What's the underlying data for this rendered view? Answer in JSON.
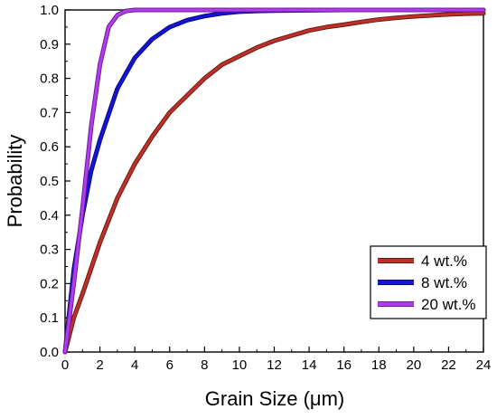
{
  "chart_data": {
    "type": "line",
    "title": "",
    "xlabel": "Grain Size (μm)",
    "ylabel": "Probability",
    "xlim": [
      0,
      24
    ],
    "ylim": [
      0,
      1.0
    ],
    "x_ticks": [
      "0",
      "2",
      "4",
      "6",
      "8",
      "10",
      "12",
      "14",
      "16",
      "18",
      "20",
      "22",
      "24"
    ],
    "y_ticks": [
      "0.0",
      "0.1",
      "0.2",
      "0.3",
      "0.4",
      "0.5",
      "0.6",
      "0.7",
      "0.8",
      "0.9",
      "1.0"
    ],
    "grid": false,
    "legend_position": "bottom-right",
    "series": [
      {
        "name": "4 wt.%",
        "color": "#c0302a",
        "edge_color": "#6b1a10",
        "x": [
          0,
          0.5,
          1,
          2,
          3,
          4,
          5,
          6,
          7,
          8,
          9,
          10,
          11,
          12,
          13,
          14,
          15,
          16,
          17,
          18,
          19,
          20,
          21,
          22,
          23,
          24
        ],
        "y": [
          0,
          0.1,
          0.17,
          0.32,
          0.45,
          0.55,
          0.63,
          0.7,
          0.75,
          0.8,
          0.84,
          0.865,
          0.89,
          0.91,
          0.925,
          0.94,
          0.95,
          0.957,
          0.965,
          0.972,
          0.977,
          0.981,
          0.984,
          0.987,
          0.989,
          0.99
        ]
      },
      {
        "name": "8 wt.%",
        "color": "#1414d6",
        "edge_color": "#0a0a80",
        "x": [
          0,
          0.5,
          1,
          1.5,
          2,
          3,
          4,
          5,
          6,
          7,
          8,
          9,
          10,
          11,
          12,
          14,
          16,
          18,
          20,
          22,
          24
        ],
        "y": [
          0,
          0.24,
          0.4,
          0.53,
          0.62,
          0.77,
          0.86,
          0.915,
          0.95,
          0.97,
          0.982,
          0.99,
          0.995,
          0.997,
          0.998,
          0.999,
          1.0,
          1.0,
          1.0,
          1.0,
          1.0
        ]
      },
      {
        "name": "20 wt.%",
        "color": "#b43cf0",
        "edge_color": "#6a1e96",
        "x": [
          0,
          0.5,
          1,
          1.5,
          2,
          2.5,
          3,
          3.5,
          4,
          6,
          8,
          12,
          16,
          20,
          24
        ],
        "y": [
          0,
          0.2,
          0.42,
          0.66,
          0.84,
          0.95,
          0.985,
          0.997,
          1.0,
          1.0,
          1.0,
          1.0,
          1.0,
          1.0,
          1.0
        ]
      }
    ]
  }
}
